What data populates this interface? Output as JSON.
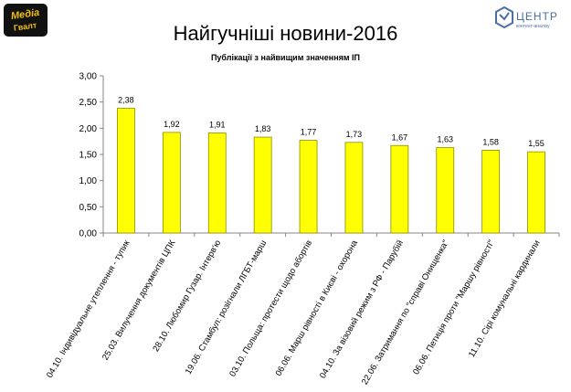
{
  "logos": {
    "left_text_line1": "Медіа",
    "left_text_line2": "Гвалт",
    "right_text_main": "ЦЕНТР",
    "right_text_sub": "контент-аналізу",
    "left_bg": "#111111",
    "left_accent": "#f2c200",
    "right_color": "#4a6fa5"
  },
  "chart_data": {
    "type": "bar",
    "title": "Найгучніші новини-2016",
    "subtitle": "Публікації з найвищим значенням ІП",
    "xlabel": "",
    "ylabel": "",
    "ylim": [
      0,
      3
    ],
    "yticks": [
      0,
      0.5,
      1,
      1.5,
      2,
      2.5,
      3
    ],
    "ytick_labels": [
      "0,00",
      "0,50",
      "1,00",
      "1,50",
      "2,00",
      "2,50",
      "3,00"
    ],
    "grid": false,
    "legend": "none",
    "bar_color": "#ffff00",
    "bar_edge_color": "#8c8c00",
    "categories": [
      "04.10. Індивідуальне утеплення - тупик",
      "25.03. Вилучення документів ЦПК",
      "28.10. Любомир Гузар. Інтерв'ю",
      "19.06. Стамбул: розігнали ЛГБТ-марш",
      "03.10. Польща: протести щодо абортів",
      "06.06. Марш рівності в Києві - охорона",
      "04.10. За візовий режим з РФ - Парубій",
      "22.06. Затримання по \"справі Онищенка\"",
      "06.06. Петиція проти \"Маршу рівності\"",
      "11.10. Сірі комунальні кардинали"
    ],
    "values": [
      2.38,
      1.92,
      1.91,
      1.83,
      1.77,
      1.73,
      1.67,
      1.63,
      1.58,
      1.55
    ],
    "value_labels": [
      "2,38",
      "1,92",
      "1,91",
      "1,83",
      "1,77",
      "1,73",
      "1,67",
      "1,63",
      "1,58",
      "1,55"
    ]
  }
}
